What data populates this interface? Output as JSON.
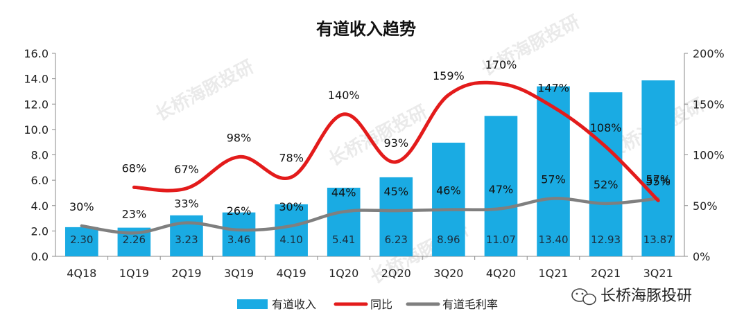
{
  "chart_data": {
    "type": "bar",
    "title": "有道收入趋势",
    "categories": [
      "4Q18",
      "1Q19",
      "2Q19",
      "3Q19",
      "4Q19",
      "1Q20",
      "2Q20",
      "3Q20",
      "4Q20",
      "1Q21",
      "2Q21",
      "3Q21"
    ],
    "series": [
      {
        "name": "有道收入",
        "type": "bar",
        "axis": "left",
        "values": [
          2.3,
          2.26,
          3.23,
          3.46,
          4.1,
          5.41,
          6.23,
          8.96,
          11.07,
          13.4,
          12.93,
          13.87
        ],
        "labels": [
          "2.30",
          "2.26",
          "3.23",
          "3.46",
          "4.10",
          "5.41",
          "6.23",
          "8.96",
          "11.07",
          "13.40",
          "12.93",
          "13.87"
        ]
      },
      {
        "name": "同比",
        "type": "line",
        "axis": "right",
        "values": [
          null,
          68,
          67,
          98,
          78,
          140,
          93,
          159,
          170,
          147,
          108,
          55
        ],
        "labels": [
          "",
          "68%",
          "67%",
          "98%",
          "78%",
          "140%",
          "93%",
          "159%",
          "170%",
          "147%",
          "108%",
          "55%"
        ]
      },
      {
        "name": "有道毛利率",
        "type": "line",
        "axis": "right",
        "values": [
          30,
          23,
          33,
          26,
          30,
          44,
          45,
          46,
          47,
          57,
          52,
          57
        ],
        "labels": [
          "30%",
          "23%",
          "33%",
          "26%",
          "30%",
          "44%",
          "45%",
          "46%",
          "47%",
          "57%",
          "52%",
          "57%"
        ]
      }
    ],
    "left_axis": {
      "min": 0,
      "max": 16,
      "step": 2,
      "ticks": [
        "0.0",
        "2.0",
        "4.0",
        "6.0",
        "8.0",
        "10.0",
        "12.0",
        "14.0",
        "16.0"
      ]
    },
    "right_axis": {
      "min": 0,
      "max": 200,
      "step": 50,
      "ticks": [
        "0%",
        "50%",
        "100%",
        "150%",
        "200%"
      ]
    },
    "legend_position": "bottom",
    "grid": false,
    "colors": {
      "bar": "#1aabe3",
      "yoy": "#e31b1b",
      "margin": "#7f7f7f"
    }
  },
  "watermark": "长桥海豚投研",
  "brand": {
    "text": "长桥海豚投研",
    "icon": "wechat-icon"
  }
}
